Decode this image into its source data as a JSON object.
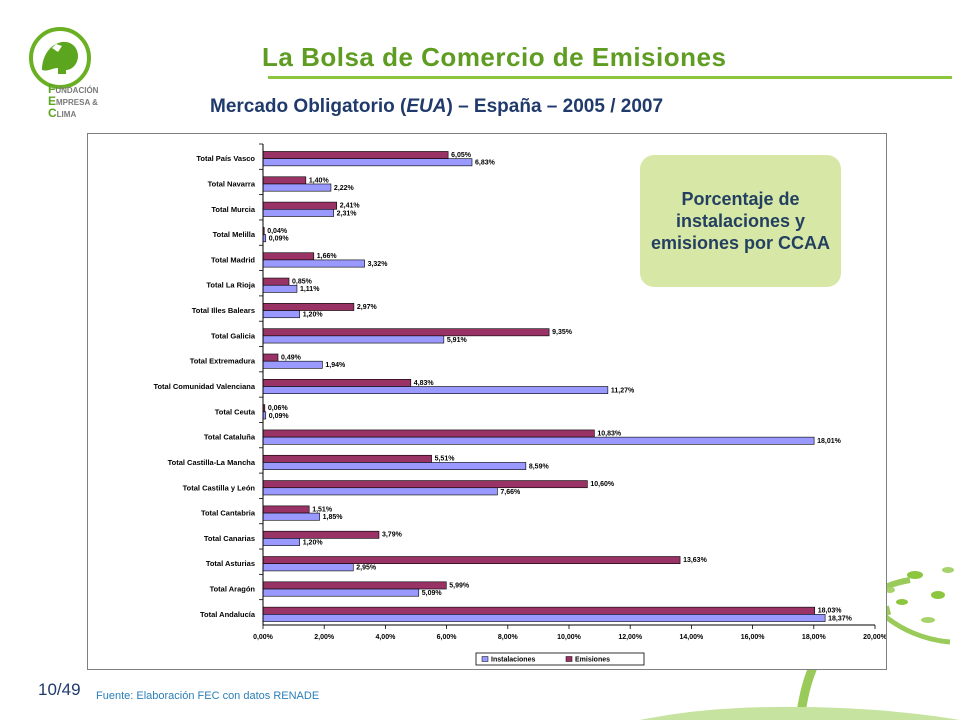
{
  "header": {
    "title": "La Bolsa de Comercio de Emisiones",
    "subtitle_pre": "Mercado Obligatorio (",
    "subtitle_em": "EUA",
    "subtitle_post": ") – España – 2005 / 2007"
  },
  "brand": {
    "line1_cap": "F",
    "line1_rest": "UNDACIÓN",
    "line2_cap": "E",
    "line2_rest": "MPRESA &",
    "line3_cap": "C",
    "line3_rest": "LIMA"
  },
  "callout": {
    "text": "Porcentaje de instalaciones y emisiones por CCAA"
  },
  "footer": {
    "page_number": "10/49",
    "source": "Fuente: Elaboración FEC con datos RENADE"
  },
  "colors": {
    "title_green": "#5e9d21",
    "subtitle_navy": "#1f3a6b",
    "emisiones_fill": "#993366",
    "instalaciones_fill": "#9999ff",
    "callout_bg": "#d7e8a6"
  },
  "chart_data": {
    "type": "bar",
    "orientation": "horizontal",
    "categories": [
      "Total País Vasco",
      "Total Navarra",
      "Total Murcia",
      "Total Melilla",
      "Total Madrid",
      "Total La Rioja",
      "Total Illes Balears",
      "Total Galicia",
      "Total Extremadura",
      "Total Comunidad Valenciana",
      "Total Ceuta",
      "Total Cataluña",
      "Total Castilla-La Mancha",
      "Total Castilla y León",
      "Total Cantabria",
      "Total Canarias",
      "Total Asturias",
      "Total Aragón",
      "Total Andalucía"
    ],
    "series": [
      {
        "name": "Emisiones",
        "values": [
          6.05,
          1.4,
          2.41,
          0.04,
          1.66,
          0.85,
          2.97,
          9.35,
          0.49,
          4.83,
          0.06,
          10.83,
          5.51,
          10.6,
          1.51,
          3.79,
          13.63,
          5.99,
          18.03
        ],
        "labels": [
          "6,05%",
          "1,40%",
          "2,41%",
          "0,04%",
          "1,66%",
          "0,85%",
          "2,97%",
          "9,35%",
          "0,49%",
          "4,83%",
          "0,06%",
          "10,83%",
          "5,51%",
          "10,60%",
          "1,51%",
          "3,79%",
          "13,63%",
          "5,99%",
          "18,03%"
        ]
      },
      {
        "name": "Instalaciones",
        "values": [
          6.83,
          2.22,
          2.31,
          0.09,
          3.32,
          1.11,
          1.2,
          5.91,
          1.94,
          11.27,
          0.09,
          18.01,
          8.59,
          7.66,
          1.85,
          1.2,
          2.95,
          5.09,
          18.37
        ],
        "labels": [
          "6,83%",
          "2,22%",
          "2,31%",
          "0,09%",
          "3,32%",
          "1,11%",
          "1,20%",
          "5,91%",
          "1,94%",
          "11,27%",
          "0,09%",
          "18,01%",
          "8,59%",
          "7,66%",
          "1,85%",
          "1,20%",
          "2,95%",
          "5,09%",
          "18,37%"
        ]
      }
    ],
    "xlim": [
      0,
      20
    ],
    "x_ticks": [
      0,
      2,
      4,
      6,
      8,
      10,
      12,
      14,
      16,
      18,
      20
    ],
    "x_tick_labels": [
      "0,00%",
      "2,00%",
      "4,00%",
      "6,00%",
      "8,00%",
      "10,00%",
      "12,00%",
      "14,00%",
      "16,00%",
      "18,00%",
      "20,00%"
    ],
    "legend": [
      "Instalaciones",
      "Emisiones"
    ],
    "legend_position": "bottom-right",
    "grid": false
  }
}
